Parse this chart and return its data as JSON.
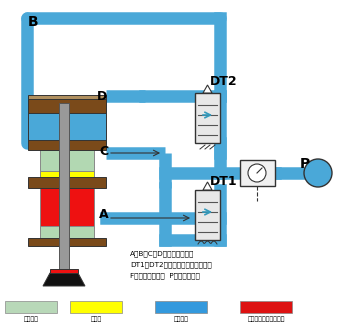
{
  "title": "",
  "bg_color": "#ffffff",
  "blue_pipe": "#4aa8d8",
  "blue_fill": "#5aafe0",
  "light_green": "#b2d8b2",
  "yellow": "#ffff00",
  "red": "#ee1111",
  "brown": "#7a4a1a",
  "gray": "#999999",
  "dark_gray": "#555555",
  "black": "#111111",
  "light_blue_legend": "#4aa8d8",
  "legend_items": [
    {
      "color": "#b8d8b8",
      "label": "排气状态"
    },
    {
      "color": "#ffff00",
      "label": "液压油"
    },
    {
      "color": "#3399dd",
      "label": "压缩空气"
    },
    {
      "color": "#dd1111",
      "label": "液压油被排压产生高压"
    }
  ],
  "note_lines": [
    "A、B、C、D为增压缸接气口",
    "DT1、DT2为电源阀（动作控制阀）",
    "F为空气过滤装置  P为压缩空气源"
  ]
}
